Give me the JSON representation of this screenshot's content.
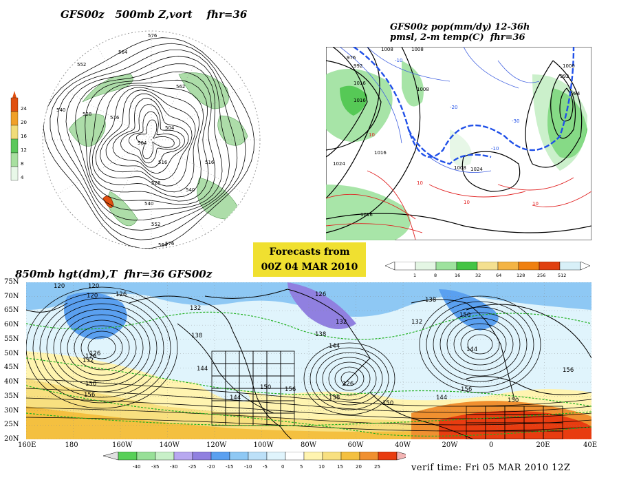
{
  "panel_polar": {
    "title": "GFS00z   500mb Z,vort    fhr=36",
    "colorbar_ticks": [
      "24",
      "20",
      "16",
      "12",
      "8",
      "4"
    ],
    "colorbar_colors": [
      "#e8f8e8",
      "#a8e0a0",
      "#5cc85c",
      "#f0dc78",
      "#f0a028",
      "#e05010"
    ],
    "contour_labels": [
      "576",
      "564",
      "552",
      "540",
      "528",
      "516",
      "504",
      "504",
      "516",
      "528",
      "540",
      "552",
      "564",
      "576",
      "562",
      "540",
      "516"
    ]
  },
  "panel_precip": {
    "title_line1": "GFS00z pop(mm/dy) 12-36h",
    "title_line2": "pmsl, 2-m temp(C)  fhr=36",
    "colorbar_ticks": [
      "1",
      "8",
      "16",
      "32",
      "64",
      "128",
      "256",
      "512"
    ],
    "colorbar_colors": [
      "#ffffff",
      "#e4f6e4",
      "#9ee29e",
      "#44c444",
      "#f4e090",
      "#f4b444",
      "#f08010",
      "#e04010",
      "#d8f0f8"
    ],
    "pressure_labels": [
      "976",
      "992",
      "1008",
      "1016",
      "1008",
      "1016",
      "1024",
      "1016",
      "1008",
      "1024",
      "1000",
      "992",
      "984",
      "1008",
      "1016"
    ],
    "temp_labels": [
      "10",
      "10",
      "10",
      "10",
      "-10",
      "-20",
      "-30",
      "-10"
    ]
  },
  "forecast_box": {
    "line1": "Forecasts from",
    "line2": "00Z 04 MAR 2010",
    "background": "#f0e030"
  },
  "panel_850": {
    "title": "850mb hgt(dm),T  fhr=36 GFS00z",
    "lat_labels": [
      "75N",
      "70N",
      "65N",
      "60N",
      "55N",
      "50N",
      "45N",
      "40N",
      "35N",
      "30N",
      "25N",
      "20N"
    ],
    "lon_labels": [
      "160E",
      "180",
      "160W",
      "140W",
      "120W",
      "100W",
      "80W",
      "60W",
      "40W",
      "20W",
      "0",
      "20E",
      "40E"
    ],
    "height_labels": [
      "120",
      "126",
      "132",
      "120",
      "126",
      "132",
      "138",
      "150",
      "156",
      "144",
      "144",
      "150",
      "156",
      "138",
      "132",
      "144",
      "126",
      "138",
      "150",
      "144",
      "156",
      "150",
      "126",
      "138",
      "150",
      "144",
      "156",
      "120",
      "126",
      "132"
    ],
    "colorbar_ticks": [
      "-40",
      "-35",
      "-30",
      "-25",
      "-20",
      "-15",
      "-10",
      "-5",
      "0",
      "5",
      "10",
      "15",
      "20",
      "25"
    ],
    "colorbar_colors": [
      "#58d058",
      "#98e098",
      "#c8f0c8",
      "#b8a8f0",
      "#9080e0",
      "#5aa0f0",
      "#8ec8f4",
      "#bce0f8",
      "#e0f4fc",
      "#ffffff",
      "#fff4b0",
      "#f8e080",
      "#f4c040",
      "#f09030",
      "#e83c10"
    ]
  },
  "verif_time": "verif time: Fri 05 MAR 2010 12Z"
}
